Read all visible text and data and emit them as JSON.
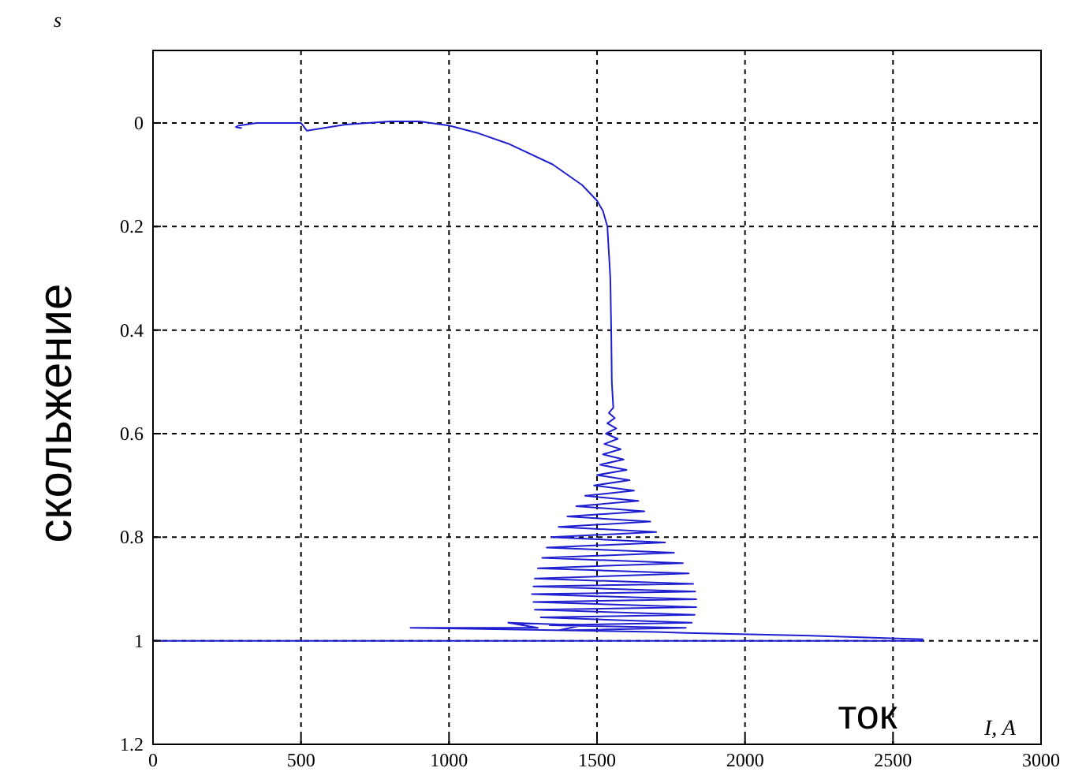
{
  "chart_data": {
    "type": "line",
    "xlabel": "I, A",
    "ylabel": "s",
    "annotations": [
      "скольжение",
      "ток"
    ],
    "xlim": [
      0,
      3000
    ],
    "xticks": [
      0,
      500,
      1000,
      1500,
      2000,
      2500,
      3000
    ],
    "ylim": [
      1.2,
      -0.14
    ],
    "yticks": [
      0,
      0.2,
      0.4,
      0.6,
      0.8,
      1,
      1.2
    ],
    "grid": true,
    "marker": "none",
    "line_style": "solid",
    "series": [
      {
        "color": "#1f1fd0",
        "x": [
          0,
          2600,
          2600,
          2200,
          1800,
          1700,
          870,
          1300,
          1200,
          1450,
          1370,
          1800,
          1340,
          1820,
          1310,
          1830,
          1290,
          1835,
          1285,
          1835,
          1280,
          1832,
          1285,
          1825,
          1290,
          1810,
          1300,
          1790,
          1315,
          1760,
          1330,
          1730,
          1345,
          1700,
          1370,
          1680,
          1400,
          1660,
          1430,
          1640,
          1460,
          1625,
          1490,
          1610,
          1500,
          1600,
          1510,
          1590,
          1520,
          1580,
          1525,
          1570,
          1530,
          1565,
          1535,
          1560,
          1540,
          1555,
          1550,
          1548,
          1545,
          1535,
          1520,
          1500,
          1450,
          1350,
          1200,
          1100,
          1000,
          900,
          800,
          650,
          520,
          500,
          350,
          290,
          280,
          300
        ],
        "values": [
          1,
          1,
          0.997,
          0.99,
          0.985,
          0.983,
          0.975,
          0.975,
          0.965,
          0.97,
          0.98,
          0.975,
          0.97,
          0.965,
          0.955,
          0.95,
          0.94,
          0.935,
          0.925,
          0.92,
          0.91,
          0.905,
          0.895,
          0.89,
          0.88,
          0.87,
          0.86,
          0.85,
          0.84,
          0.83,
          0.82,
          0.81,
          0.8,
          0.79,
          0.78,
          0.77,
          0.76,
          0.75,
          0.74,
          0.73,
          0.72,
          0.71,
          0.7,
          0.69,
          0.68,
          0.67,
          0.66,
          0.65,
          0.64,
          0.63,
          0.62,
          0.61,
          0.6,
          0.59,
          0.58,
          0.57,
          0.56,
          0.55,
          0.5,
          0.4,
          0.3,
          0.2,
          0.17,
          0.15,
          0.12,
          0.08,
          0.04,
          0.02,
          0.005,
          -0.003,
          -0.003,
          0.003,
          0.015,
          0,
          0,
          0.005,
          0.008,
          0.01
        ]
      }
    ]
  }
}
